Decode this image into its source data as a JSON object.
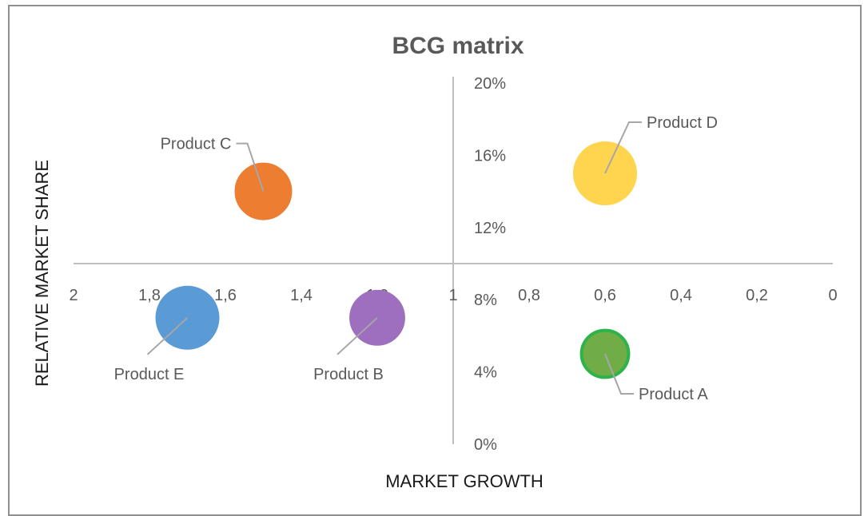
{
  "chart_data": {
    "type": "bubble",
    "title": "BCG matrix",
    "xlabel": "MARKET GROWTH",
    "ylabel": "RELATIVE MARKET SHARE",
    "x_axis": {
      "min": 0,
      "max": 2,
      "reversed": true,
      "crosses_y_at": 0.1,
      "ticks": [
        2,
        1.8,
        1.6,
        1.4,
        1.2,
        1,
        0.8,
        0.6,
        0.4,
        0.2,
        0
      ],
      "tick_labels": [
        "2",
        "1,8",
        "1,6",
        "1,4",
        "1,2",
        "1",
        "0,8",
        "0,6",
        "0,4",
        "0,2",
        "0"
      ]
    },
    "y_axis": {
      "min": 0,
      "max": 0.2,
      "crosses_x_at": 1,
      "ticks": [
        0,
        0.04,
        0.08,
        0.12,
        0.16,
        0.2
      ],
      "tick_labels": [
        "0%",
        "4%",
        "8%",
        "12%",
        "16%",
        "20%"
      ]
    },
    "grid": false,
    "legend": "none",
    "points": [
      {
        "label": "Product A",
        "x": 0.6,
        "y": 0.05,
        "size": 0.6,
        "color": "#70ad47",
        "border": "#2db34a",
        "label_side": "bottom-right"
      },
      {
        "label": "Product B",
        "x": 1.2,
        "y": 0.07,
        "size": 0.75,
        "color": "#9e6fbf",
        "border": "#9e6fbf",
        "label_side": "bottom-left"
      },
      {
        "label": "Product C",
        "x": 1.5,
        "y": 0.14,
        "size": 0.8,
        "color": "#ed7d31",
        "border": "#ed7d31",
        "label_side": "top-left"
      },
      {
        "label": "Product D",
        "x": 0.6,
        "y": 0.15,
        "size": 1.0,
        "color": "#ffd54f",
        "border": "#ffd54f",
        "label_side": "top-right"
      },
      {
        "label": "Product E",
        "x": 1.7,
        "y": 0.07,
        "size": 1.0,
        "color": "#5b9bd5",
        "border": "#5b9bd5",
        "label_side": "bottom-left"
      }
    ]
  }
}
